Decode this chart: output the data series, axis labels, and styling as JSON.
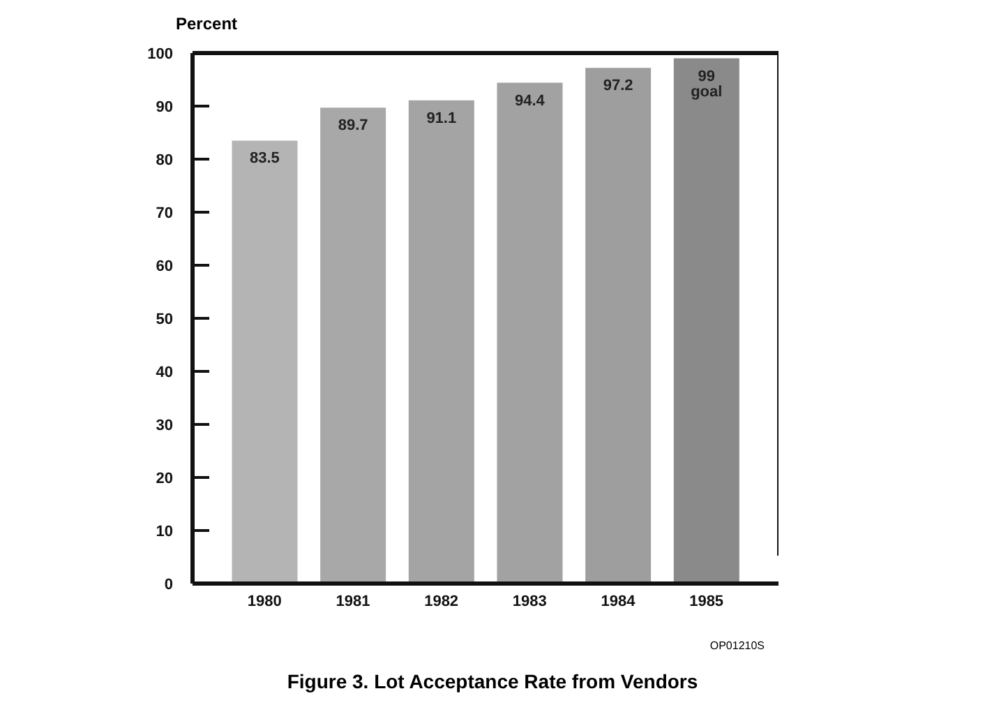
{
  "chart_data": {
    "type": "bar",
    "title": "Figure 3. Lot Acceptance Rate from Vendors",
    "ylabel": "Percent",
    "categories": [
      "1980",
      "1981",
      "1982",
      "1983",
      "1984",
      "1985"
    ],
    "values": [
      83.5,
      89.7,
      91.1,
      94.4,
      97.2,
      99
    ],
    "colors": [
      "#b4b4b4",
      "#a8a8a8",
      "#a4a4a4",
      "#a2a2a2",
      "#9e9e9e",
      "#8a8a8a"
    ],
    "value_labels": [
      "83.5",
      "89.7",
      "91.1",
      "94.4",
      "97.2",
      "99 goal"
    ],
    "ylim": [
      0,
      100
    ],
    "yticks": [
      0,
      10,
      20,
      30,
      40,
      50,
      60,
      70,
      80,
      90,
      100
    ],
    "grid": false,
    "annotations": [
      "OP01210S"
    ]
  }
}
